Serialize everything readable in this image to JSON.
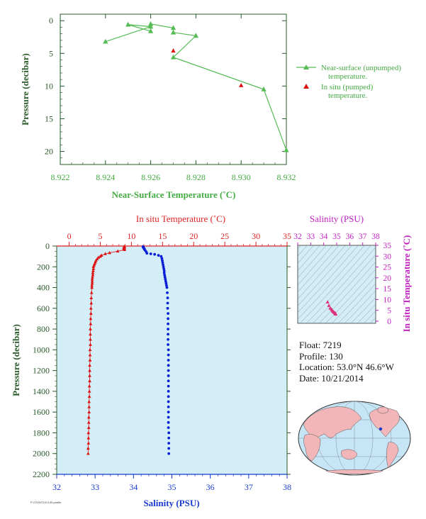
{
  "colors": {
    "top_axes": "#2a5a2a",
    "top_labels": "#44aa44",
    "unpumped": "#55bb55",
    "pumped": "#dd1111",
    "temp_axis": "#dd2222",
    "sal_axis": "#1a3ad0",
    "sal_points": "#0b1fd6",
    "pressure_axis": "#2a5a2a",
    "plot_bg": "#d3eef7",
    "ts_axis": "#c020c0",
    "ts_points": "#e0307a"
  },
  "chart_data": [
    {
      "type": "line",
      "xlabel": "Near-Surface Temperature (˚C)",
      "ylabel": "Pressure (decibar)",
      "xlim": [
        8.922,
        8.932
      ],
      "ylim": [
        22,
        -1
      ],
      "xticks": [
        "8.922",
        "8.924",
        "8.926",
        "8.928",
        "8.930",
        "8.932"
      ],
      "yticks": [
        "0",
        "5",
        "10",
        "15",
        "20"
      ],
      "series": [
        {
          "name": "Near-surface (unpumped) temperature.",
          "points": [
            [
              8.924,
              3.2
            ],
            [
              8.926,
              0.9
            ],
            [
              8.925,
              0.6
            ],
            [
              8.926,
              1.6
            ],
            [
              8.926,
              0.5
            ],
            [
              8.927,
              1.1
            ],
            [
              8.927,
              1.8
            ],
            [
              8.928,
              2.3
            ],
            [
              8.927,
              5.6
            ],
            [
              8.931,
              10.5
            ],
            [
              8.932,
              19.8
            ]
          ]
        },
        {
          "name": "In situ (pumped) temperature.",
          "points": [
            [
              8.927,
              4.6
            ],
            [
              8.93,
              9.9
            ]
          ]
        }
      ],
      "legend": [
        "Near-surface (unpumped)",
        "temperature.",
        "In situ (pumped)",
        "temperature."
      ]
    },
    {
      "type": "scatter",
      "title_top": "In situ Temperature (˚C)",
      "xlabel": "Salinity (PSU)",
      "ylabel": "Pressure (decibar)",
      "temp_range": [
        -2,
        35
      ],
      "temp_ticks": [
        "0",
        "5",
        "10",
        "15",
        "20",
        "25",
        "30",
        "35"
      ],
      "sal_range": [
        32,
        38
      ],
      "sal_ticks": [
        "32",
        "33",
        "34",
        "35",
        "36",
        "37",
        "38"
      ],
      "pressure_range": [
        0,
        2200
      ],
      "pressure_ticks": [
        "0",
        "200",
        "400",
        "600",
        "800",
        "1000",
        "1200",
        "1400",
        "1600",
        "1800",
        "2000",
        "2200"
      ],
      "temperature_profile": [
        [
          8.9,
          5
        ],
        [
          8.8,
          10
        ],
        [
          8.8,
          15
        ],
        [
          8.9,
          20
        ],
        [
          8.8,
          25
        ],
        [
          8.8,
          30
        ],
        [
          8.9,
          35
        ],
        [
          7.8,
          50
        ],
        [
          6.5,
          65
        ],
        [
          5.8,
          75
        ],
        [
          5.2,
          90
        ],
        [
          5,
          100
        ],
        [
          4.7,
          110
        ],
        [
          4.5,
          125
        ],
        [
          4.3,
          140
        ],
        [
          4.2,
          155
        ],
        [
          4.1,
          170
        ],
        [
          4,
          185
        ],
        [
          3.9,
          200
        ],
        [
          3.9,
          220
        ],
        [
          3.85,
          240
        ],
        [
          3.8,
          260
        ],
        [
          3.8,
          280
        ],
        [
          3.75,
          300
        ],
        [
          3.7,
          320
        ],
        [
          3.7,
          340
        ],
        [
          3.7,
          360
        ],
        [
          3.65,
          380
        ],
        [
          3.65,
          400
        ],
        [
          3.6,
          450
        ],
        [
          3.55,
          500
        ],
        [
          3.55,
          550
        ],
        [
          3.5,
          600
        ],
        [
          3.5,
          650
        ],
        [
          3.45,
          700
        ],
        [
          3.45,
          750
        ],
        [
          3.4,
          800
        ],
        [
          3.4,
          850
        ],
        [
          3.4,
          900
        ],
        [
          3.4,
          950
        ],
        [
          3.35,
          1000
        ],
        [
          3.35,
          1050
        ],
        [
          3.35,
          1100
        ],
        [
          3.3,
          1150
        ],
        [
          3.3,
          1200
        ],
        [
          3.3,
          1250
        ],
        [
          3.3,
          1300
        ],
        [
          3.25,
          1350
        ],
        [
          3.25,
          1400
        ],
        [
          3.25,
          1450
        ],
        [
          3.2,
          1500
        ],
        [
          3.2,
          1550
        ],
        [
          3.2,
          1600
        ],
        [
          3.15,
          1650
        ],
        [
          3.15,
          1700
        ],
        [
          3.15,
          1750
        ],
        [
          3.1,
          1800
        ],
        [
          3.1,
          1850
        ],
        [
          3.1,
          1900
        ],
        [
          3.05,
          1950
        ],
        [
          3.05,
          2000
        ]
      ],
      "salinity_profile": [
        [
          34.25,
          5
        ],
        [
          34.25,
          10
        ],
        [
          34.26,
          15
        ],
        [
          34.27,
          20
        ],
        [
          34.28,
          25
        ],
        [
          34.28,
          30
        ],
        [
          34.3,
          40
        ],
        [
          34.33,
          55
        ],
        [
          34.35,
          70
        ],
        [
          34.45,
          75
        ],
        [
          34.55,
          80
        ],
        [
          34.65,
          90
        ],
        [
          34.72,
          100
        ],
        [
          34.74,
          120
        ],
        [
          34.75,
          140
        ],
        [
          34.76,
          160
        ],
        [
          34.77,
          180
        ],
        [
          34.78,
          200
        ],
        [
          34.79,
          220
        ],
        [
          34.8,
          240
        ],
        [
          34.8,
          260
        ],
        [
          34.81,
          280
        ],
        [
          34.82,
          300
        ],
        [
          34.83,
          320
        ],
        [
          34.84,
          340
        ],
        [
          34.85,
          360
        ],
        [
          34.86,
          380
        ],
        [
          34.87,
          400
        ],
        [
          34.88,
          450
        ],
        [
          34.89,
          500
        ],
        [
          34.89,
          550
        ],
        [
          34.89,
          600
        ],
        [
          34.9,
          650
        ],
        [
          34.9,
          700
        ],
        [
          34.9,
          750
        ],
        [
          34.9,
          800
        ],
        [
          34.9,
          850
        ],
        [
          34.9,
          900
        ],
        [
          34.9,
          950
        ],
        [
          34.91,
          1000
        ],
        [
          34.91,
          1050
        ],
        [
          34.91,
          1100
        ],
        [
          34.91,
          1150
        ],
        [
          34.91,
          1200
        ],
        [
          34.91,
          1250
        ],
        [
          34.91,
          1300
        ],
        [
          34.91,
          1350
        ],
        [
          34.91,
          1400
        ],
        [
          34.91,
          1450
        ],
        [
          34.91,
          1500
        ],
        [
          34.91,
          1550
        ],
        [
          34.91,
          1600
        ],
        [
          34.91,
          1650
        ],
        [
          34.91,
          1700
        ],
        [
          34.91,
          1750
        ],
        [
          34.92,
          1800
        ],
        [
          34.92,
          1850
        ],
        [
          34.92,
          1900
        ],
        [
          34.92,
          1950
        ],
        [
          34.92,
          2000
        ]
      ]
    },
    {
      "type": "scatter",
      "title": "Salinity (PSU)",
      "ylabel": "In situ Temperature (˚C)",
      "sal_range": [
        32,
        38
      ],
      "sal_ticks": [
        "32",
        "33",
        "34",
        "35",
        "36",
        "37",
        "38"
      ],
      "temp_range": [
        -1,
        35
      ],
      "temp_ticks": [
        "0",
        "5",
        "10",
        "15",
        "20",
        "25",
        "30",
        "35"
      ],
      "points": [
        [
          34.3,
          8.8
        ],
        [
          34.4,
          7.2
        ],
        [
          34.5,
          6.0
        ],
        [
          34.6,
          5.5
        ],
        [
          34.65,
          5.0
        ],
        [
          34.7,
          4.6
        ],
        [
          34.75,
          4.3
        ],
        [
          34.8,
          4.0
        ],
        [
          34.85,
          3.8
        ],
        [
          34.9,
          3.6
        ],
        [
          34.92,
          3.4
        ],
        [
          34.92,
          3.2
        ]
      ]
    }
  ],
  "float_info": {
    "float": "Float:  7219",
    "profile": "Profile:  130",
    "location": "Location:  53.0°N  46.6°W",
    "date": "Date:  10/21/2014"
  },
  "tiny_id": "F:\\7219\\7219.130.profile"
}
